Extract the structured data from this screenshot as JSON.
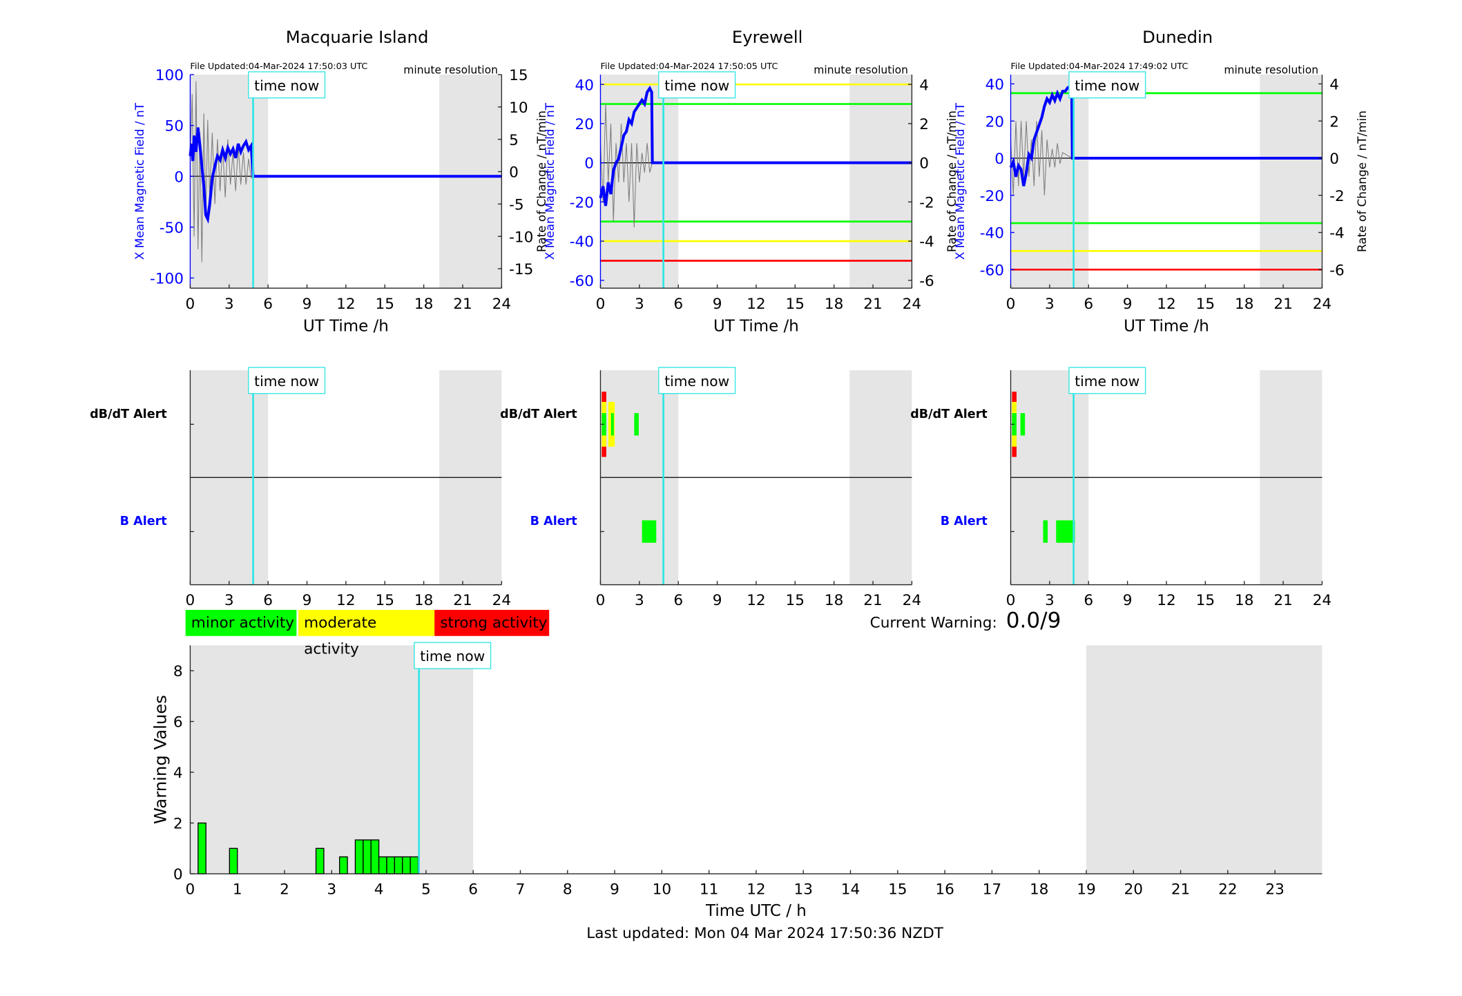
{
  "colors": {
    "grey_shade": "#e5e5e5",
    "field_line": "#0000ff",
    "now_line": "#33e5e5",
    "minor": "#00ff00",
    "moderate": "#ffff00",
    "strong": "#ff0000"
  },
  "legend": {
    "minor": "minor activity",
    "moderate": "moderate activity",
    "strong": "strong activity"
  },
  "current_warning": {
    "label": "Current Warning:",
    "value": "0.0/9"
  },
  "footer": "Last updated: Mon 04 Mar 2024 17:50:36 NZDT",
  "now_label": "time now",
  "chart_data": [
    {
      "type": "line",
      "title": "Macquarie Island",
      "file_updated": "File Updated:04-Mar-2024 17:50:03 UTC",
      "resolution": "minute resolution",
      "xlabel": "UT Time /h",
      "ylabel_left": "X Mean Magnetic Field / nT",
      "ylabel_right": "Rate of Change / nT/min",
      "xlim": [
        0,
        24
      ],
      "xticks": [
        0,
        3,
        6,
        9,
        12,
        15,
        18,
        21,
        24
      ],
      "ylim_left": [
        -110,
        100
      ],
      "yticks_left": [
        100,
        50,
        0,
        -50,
        -100
      ],
      "ylim_right": [
        -18,
        15
      ],
      "yticks_right": [
        15,
        10,
        5,
        0,
        -5,
        -10,
        -15
      ],
      "shaded_intervals": [
        [
          0,
          6
        ],
        [
          19.2,
          24
        ]
      ],
      "now_hour": 4.85,
      "thresholds": [],
      "series": [
        {
          "name": "X Mean Magnetic Field",
          "axis": "left",
          "x": [
            0,
            0.1,
            0.2,
            0.3,
            0.45,
            0.6,
            0.75,
            0.9,
            1.05,
            1.2,
            1.35,
            1.5,
            1.7,
            1.9,
            2.1,
            2.3,
            2.5,
            2.7,
            2.9,
            3.1,
            3.3,
            3.5,
            3.7,
            3.9,
            4.1,
            4.3,
            4.5,
            4.7,
            4.85,
            5,
            24
          ],
          "y": [
            20,
            32,
            15,
            40,
            24,
            48,
            30,
            10,
            -10,
            -38,
            -42,
            -28,
            -2,
            10,
            20,
            16,
            26,
            18,
            28,
            22,
            27,
            18,
            32,
            24,
            30,
            34,
            26,
            30,
            0,
            0,
            0
          ]
        },
        {
          "name": "Rate of Change",
          "axis": "right",
          "x": [
            0,
            0.15,
            0.3,
            0.45,
            0.6,
            0.75,
            0.9,
            1.05,
            1.2,
            1.35,
            1.5,
            1.7,
            1.9,
            2.1,
            2.3,
            2.5,
            2.7,
            2.9,
            3.1,
            3.3,
            3.5,
            3.7,
            3.9,
            4.1,
            4.3,
            4.5,
            4.7,
            4.85
          ],
          "y": [
            2,
            12,
            -10,
            14,
            -12,
            6,
            -14,
            9,
            -7,
            8,
            -4,
            6,
            -5,
            5,
            -3,
            4,
            -4,
            5,
            -2,
            3,
            -3,
            4,
            -2,
            3,
            -2,
            2,
            -1,
            0
          ]
        }
      ]
    },
    {
      "type": "line",
      "title": "Eyrewell",
      "file_updated": "File Updated:04-Mar-2024 17:50:05 UTC",
      "resolution": "minute resolution",
      "xlabel": "UT Time /h",
      "ylabel_left": "X Mean Magnetic Field / nT",
      "ylabel_right": "Rate of Change / nT/min",
      "xlim": [
        0,
        24
      ],
      "xticks": [
        0,
        3,
        6,
        9,
        12,
        15,
        18,
        21,
        24
      ],
      "ylim_left": [
        -64,
        45
      ],
      "yticks_left": [
        40,
        20,
        0,
        -20,
        -40,
        -60
      ],
      "ylim_right": [
        -6.4,
        4.5
      ],
      "yticks_right": [
        4,
        2,
        0,
        -2,
        -4,
        -6
      ],
      "shaded_intervals": [
        [
          0,
          6
        ],
        [
          19.2,
          24
        ]
      ],
      "now_hour": 4.85,
      "thresholds": [
        {
          "value": 40,
          "color": "yellow"
        },
        {
          "value": 30,
          "color": "green"
        },
        {
          "value": -30,
          "color": "green"
        },
        {
          "value": -40,
          "color": "yellow"
        },
        {
          "value": -50,
          "color": "red"
        }
      ],
      "series": [
        {
          "name": "X Mean Magnetic Field",
          "axis": "left",
          "x": [
            0,
            0.2,
            0.4,
            0.6,
            0.8,
            1.0,
            1.2,
            1.4,
            1.6,
            1.8,
            2.0,
            2.2,
            2.4,
            2.6,
            2.8,
            3.0,
            3.2,
            3.4,
            3.6,
            3.8,
            3.95,
            4.0,
            24
          ],
          "y": [
            -18,
            -12,
            -22,
            -10,
            -16,
            -4,
            0,
            2,
            8,
            14,
            16,
            22,
            20,
            26,
            28,
            30,
            32,
            30,
            36,
            38,
            36,
            0,
            0
          ]
        },
        {
          "name": "Rate of Change",
          "axis": "right",
          "x": [
            0,
            0.2,
            0.4,
            0.6,
            0.8,
            1.0,
            1.2,
            1.4,
            1.6,
            1.8,
            2.0,
            2.2,
            2.4,
            2.6,
            2.8,
            3.0,
            3.2,
            3.4,
            3.6,
            3.8,
            4.0
          ],
          "y": [
            1,
            -2,
            3,
            -1,
            2,
            -3,
            1,
            -1,
            2,
            -1,
            1,
            -2,
            1,
            -3.3,
            1,
            -1,
            0.5,
            -0.5,
            1,
            -0.5,
            0
          ]
        }
      ]
    },
    {
      "type": "line",
      "title": "Dunedin",
      "file_updated": "File Updated:04-Mar-2024 17:49:02 UTC",
      "resolution": "minute resolution",
      "xlabel": "UT Time /h",
      "ylabel_left": "X Mean Magnetic Field / nT",
      "ylabel_right": "Rate of Change / nT/min",
      "xlim": [
        0,
        24
      ],
      "xticks": [
        0,
        3,
        6,
        9,
        12,
        15,
        18,
        21,
        24
      ],
      "ylim_left": [
        -70,
        45
      ],
      "yticks_left": [
        40,
        20,
        0,
        -20,
        -40,
        -60
      ],
      "ylim_right": [
        -7,
        4.5
      ],
      "yticks_right": [
        4,
        2,
        0,
        -2,
        -4,
        -6
      ],
      "shaded_intervals": [
        [
          0,
          6
        ],
        [
          19.2,
          24
        ]
      ],
      "now_hour": 4.85,
      "thresholds": [
        {
          "value": 35,
          "color": "green"
        },
        {
          "value": -35,
          "color": "green"
        },
        {
          "value": -50,
          "color": "yellow"
        },
        {
          "value": -60,
          "color": "red"
        }
      ],
      "series": [
        {
          "name": "X Mean Magnetic Field",
          "axis": "left",
          "x": [
            0,
            0.2,
            0.4,
            0.6,
            0.8,
            1.0,
            1.2,
            1.4,
            1.6,
            1.8,
            2.0,
            2.2,
            2.4,
            2.6,
            2.8,
            3.0,
            3.2,
            3.4,
            3.6,
            3.8,
            4.0,
            4.2,
            4.4,
            4.6,
            4.7,
            4.75,
            24
          ],
          "y": [
            -5,
            -2,
            -10,
            -4,
            -6,
            -15,
            -8,
            2,
            0,
            10,
            14,
            18,
            22,
            28,
            32,
            30,
            34,
            31,
            35,
            32,
            36,
            36,
            38,
            38,
            38,
            0,
            0
          ]
        },
        {
          "name": "Rate of Change",
          "axis": "right",
          "x": [
            0,
            0.2,
            0.4,
            0.6,
            0.8,
            1.0,
            1.2,
            1.4,
            1.6,
            1.8,
            2.0,
            2.2,
            2.4,
            2.6,
            2.8,
            3.0,
            3.2,
            3.4,
            3.6,
            3.8,
            4.0,
            4.75
          ],
          "y": [
            1,
            -2,
            2,
            -1.5,
            2,
            -1,
            2,
            -1,
            1,
            -1.5,
            2,
            -1,
            1.5,
            -2,
            1,
            -0.5,
            0.5,
            -0.5,
            0.8,
            -0.3,
            0.3,
            0
          ]
        }
      ]
    },
    {
      "type": "alert",
      "station": "Macquarie Island",
      "xlim": [
        0,
        24
      ],
      "xticks": [
        0,
        3,
        6,
        9,
        12,
        15,
        18,
        21,
        24
      ],
      "shaded_intervals": [
        [
          0,
          6
        ],
        [
          19.2,
          24
        ]
      ],
      "now_hour": 4.85,
      "rows": [
        "dB/dT Alert",
        "B Alert"
      ],
      "events": []
    },
    {
      "type": "alert",
      "station": "Eyrewell",
      "xlim": [
        0,
        24
      ],
      "xticks": [
        0,
        3,
        6,
        9,
        12,
        15,
        18,
        21,
        24
      ],
      "shaded_intervals": [
        [
          0,
          6
        ],
        [
          19.2,
          24
        ]
      ],
      "now_hour": 4.85,
      "rows": [
        "dB/dT Alert",
        "B Alert"
      ],
      "events": [
        {
          "row": 0,
          "start": 0.1,
          "end": 0.45,
          "level": "strong"
        },
        {
          "row": 0,
          "start": 0.6,
          "end": 1.1,
          "level": "moderate"
        },
        {
          "row": 0,
          "start": 2.6,
          "end": 2.95,
          "level": "minor"
        },
        {
          "row": 1,
          "start": 3.2,
          "end": 4.3,
          "level": "minor"
        }
      ]
    },
    {
      "type": "alert",
      "station": "Dunedin",
      "xlim": [
        0,
        24
      ],
      "xticks": [
        0,
        3,
        6,
        9,
        12,
        15,
        18,
        21,
        24
      ],
      "shaded_intervals": [
        [
          0,
          6
        ],
        [
          19.2,
          24
        ]
      ],
      "now_hour": 4.85,
      "rows": [
        "dB/dT Alert",
        "B Alert"
      ],
      "events": [
        {
          "row": 0,
          "start": 0.1,
          "end": 0.45,
          "level": "strong"
        },
        {
          "row": 0,
          "start": 0.75,
          "end": 1.1,
          "level": "minor"
        },
        {
          "row": 1,
          "start": 2.5,
          "end": 2.85,
          "level": "minor"
        },
        {
          "row": 1,
          "start": 3.5,
          "end": 4.95,
          "level": "minor"
        }
      ]
    },
    {
      "type": "bar",
      "xlabel": "Time UTC / h",
      "ylabel": "Warning Values",
      "xlim": [
        0,
        24
      ],
      "ylim": [
        0,
        9
      ],
      "xticks": [
        0,
        1,
        2,
        3,
        4,
        5,
        6,
        7,
        8,
        9,
        10,
        11,
        12,
        13,
        14,
        15,
        16,
        17,
        18,
        19,
        20,
        21,
        22,
        23
      ],
      "yticks": [
        0,
        2,
        4,
        6,
        8
      ],
      "shaded_intervals": [
        [
          0,
          6
        ],
        [
          19,
          24
        ]
      ],
      "now_hour": 4.85,
      "bar_width": 0.1667,
      "bar_starts": [
        0.1667,
        0.8333,
        2.6667,
        3.1667,
        3.5,
        3.6667,
        3.8333,
        4.0,
        4.1667,
        4.3333,
        4.5,
        4.6667
      ],
      "values": [
        2,
        1,
        1,
        0.6667,
        1.3333,
        1.3333,
        1.3333,
        0.6667,
        0.6667,
        0.6667,
        0.6667,
        0.6667
      ]
    }
  ]
}
